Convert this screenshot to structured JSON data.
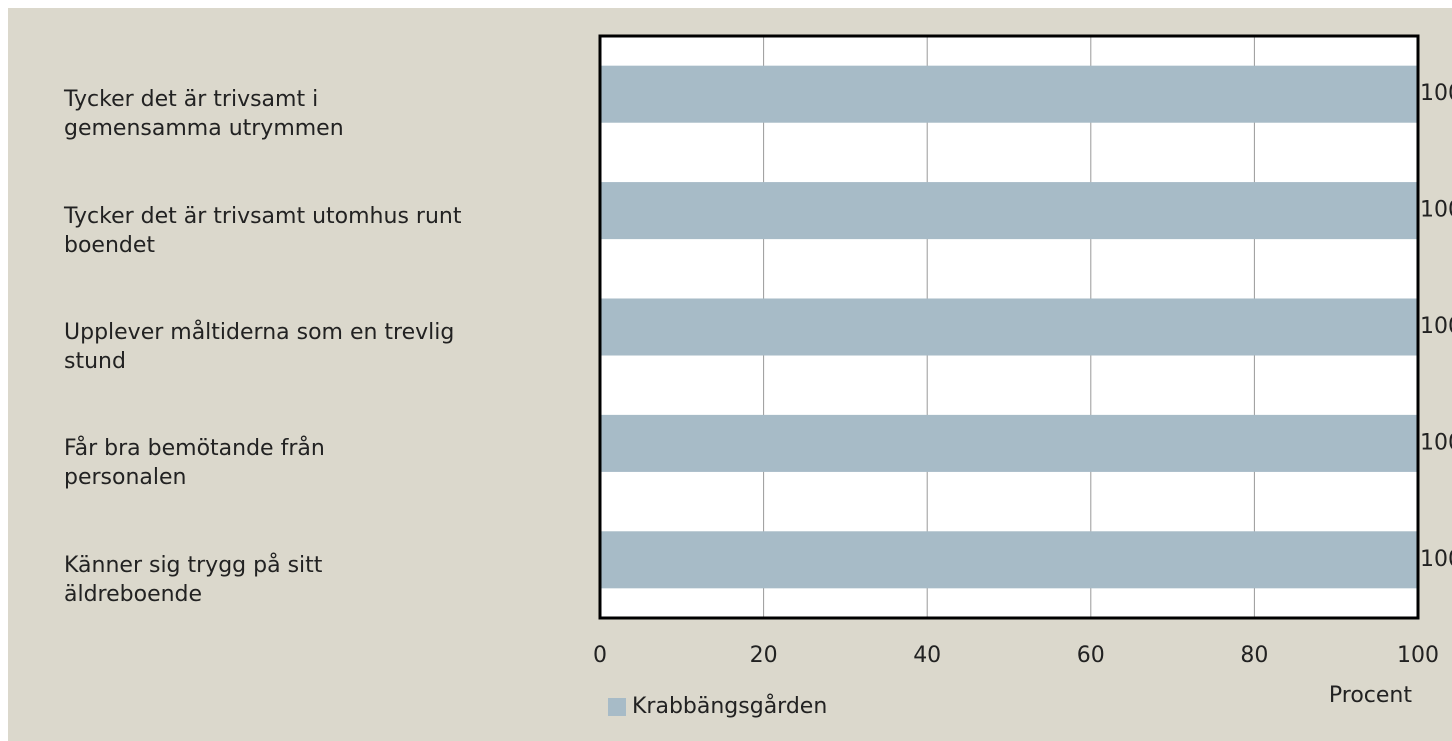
{
  "chart_data": {
    "type": "barh",
    "categories": [
      "Tycker det är trivsamt i\ngemensamma utrymmen",
      "Tycker det är trivsamt utomhus runt\nboendet",
      "Upplever måltiderna som en trevlig\nstund",
      "Får bra bemötande från\npersonalen",
      "Känner sig trygg på sitt\näldreboende"
    ],
    "series": [
      {
        "name": "Krabbängsgården",
        "color": "#a7bbc7",
        "values": [
          100,
          100,
          100,
          100,
          100
        ]
      }
    ],
    "xlabel": "Procent",
    "xlim": [
      0,
      100
    ],
    "xticks": [
      0,
      20,
      40,
      60,
      80,
      100
    ],
    "grid": true,
    "legend": "bottom"
  }
}
